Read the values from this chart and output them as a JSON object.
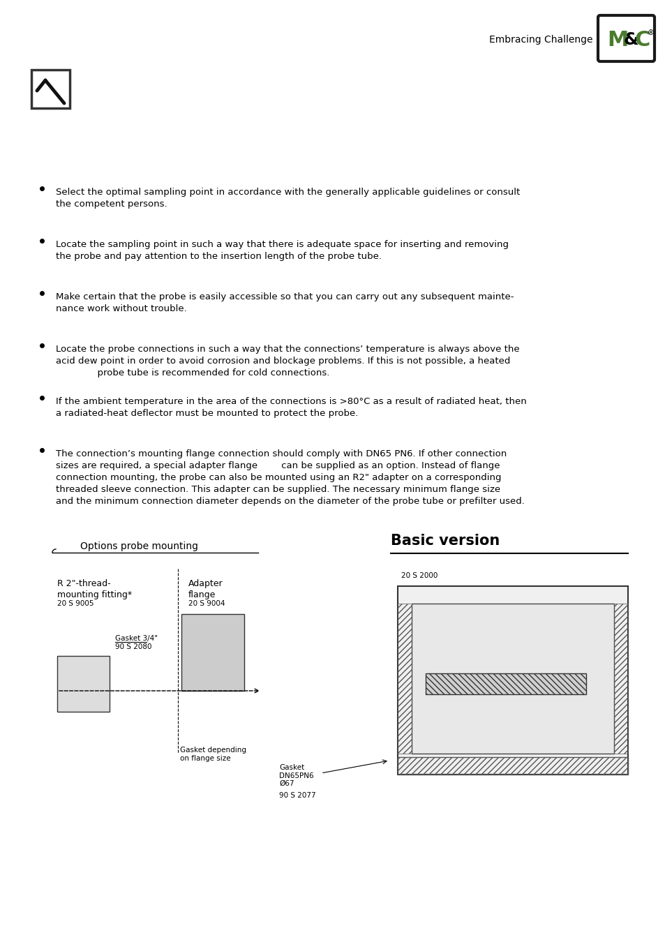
{
  "bg_color": "#ffffff",
  "header_text": "Embracing Challenge",
  "logo_mc": "M&C",
  "logo_registered": "®",
  "bullet_points": [
    "Select the optimal sampling point in accordance with the generally applicable guidelines or consult\nthe competent persons.",
    "Locate the sampling point in such a way that there is adequate space for inserting and removing\nthe probe and pay attention to the insertion length of the probe tube.",
    "Make certain that the probe is easily accessible so that you can carry out any subsequent mainte-\nnance work without trouble.",
    "Locate the probe connections in such a way that the connections’ temperature is always above the\nacid dew point in order to avoid corrosion and blockage problems. If this is not possible, a heated\n              probe tube is recommended for cold connections.",
    "If the ambient temperature in the area of the connections is >80°C as a result of radiated heat, then\na radiated-heat deflector must be mounted to protect the probe.",
    "The connection’s mounting flange connection should comply with DN65 PN6. If other connection\nsizes are required, a special adapter flange        can be supplied as an option. Instead of flange\nconnection mounting, the probe can also be mounted using an R2\" adapter on a corresponding\nthreaded sleeve connection. This adapter can be supplied. The necessary minimum flange size\nand the minimum connection diameter depends on the diameter of the probe tube or prefilter used."
  ],
  "diagram_title_left": "Options probe mounting",
  "diagram_title_right": "Basic version",
  "label_r2": "R 2\"-thread-\nmounting fitting*",
  "label_adapter": "Adapter\nflange",
  "label_20s9005": "20 S 9005",
  "label_20s9004": "20 S 9004",
  "label_20s2000": "20 S 2000",
  "label_gasket34": "Gasket 3/4\"",
  "label_90s2080": "90 S 2080",
  "label_gasket_flange": "Gasket depending\non flange size",
  "label_gasket_dn65": "Gasket\nDN65PN6\nØ67",
  "label_90s2077": "90 S 2077",
  "text_color": "#000000",
  "green_color": "#4a7c2f",
  "logo_bg": "#ffffff",
  "logo_border": "#1a1a1a"
}
